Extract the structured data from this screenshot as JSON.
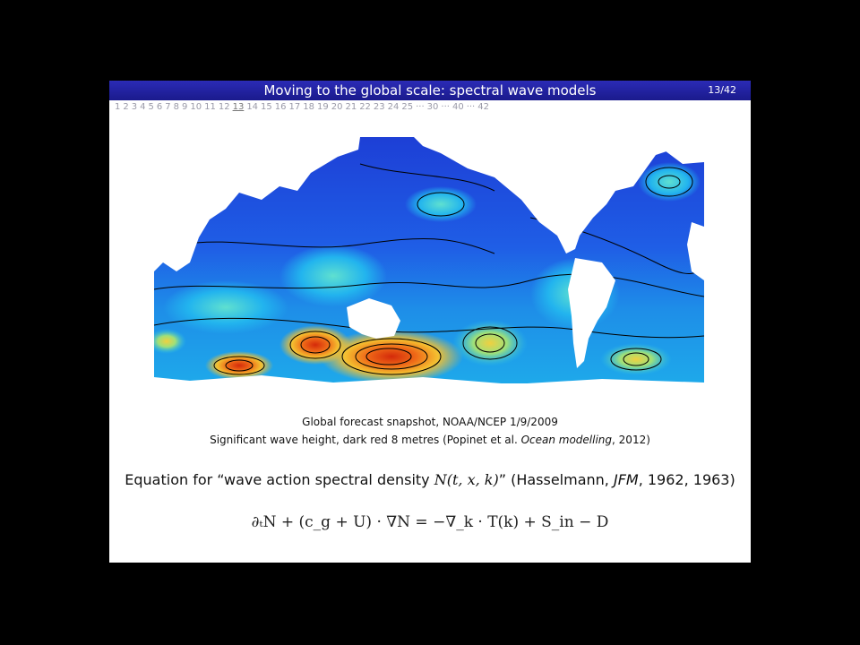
{
  "slide": {
    "title": "Moving to the global scale: spectral wave models",
    "page_number": "13/42",
    "nav_pages": [
      "1",
      "2",
      "3",
      "4",
      "5",
      "6",
      "7",
      "8",
      "9",
      "10",
      "11",
      "12",
      "13",
      "14",
      "15",
      "16",
      "17",
      "18",
      "19",
      "20",
      "21",
      "22",
      "23",
      "24",
      "25",
      "···",
      "30",
      "···",
      "40",
      "···",
      "42"
    ],
    "current_page": "13"
  },
  "figure": {
    "caption_line1": "Global forecast snapshot, NOAA/NCEP 1/9/2009",
    "caption_line2_pre": "Significant wave height, dark red 8 metres (Popinet et al. ",
    "caption_line2_journal": "Ocean modelling",
    "caption_line2_post": ", 2012)"
  },
  "equation_text": {
    "pre": "Equation for “wave action spectral density ",
    "symbol": "N(t, x, k)",
    "mid": "” (Hasselmann, ",
    "journal": "JFM",
    "post": ", 1962, 1963)"
  },
  "formula": "∂ₜN + (c_g + U) · ∇N = −∇_k · T(k) + S_in − D",
  "colors": {
    "title_bar": "#1f1f9e",
    "ocean_low": "#1a3fd8",
    "ocean_mid": "#19b8ef",
    "wave_high": "#f0a020",
    "wave_max": "#d42a0a"
  }
}
